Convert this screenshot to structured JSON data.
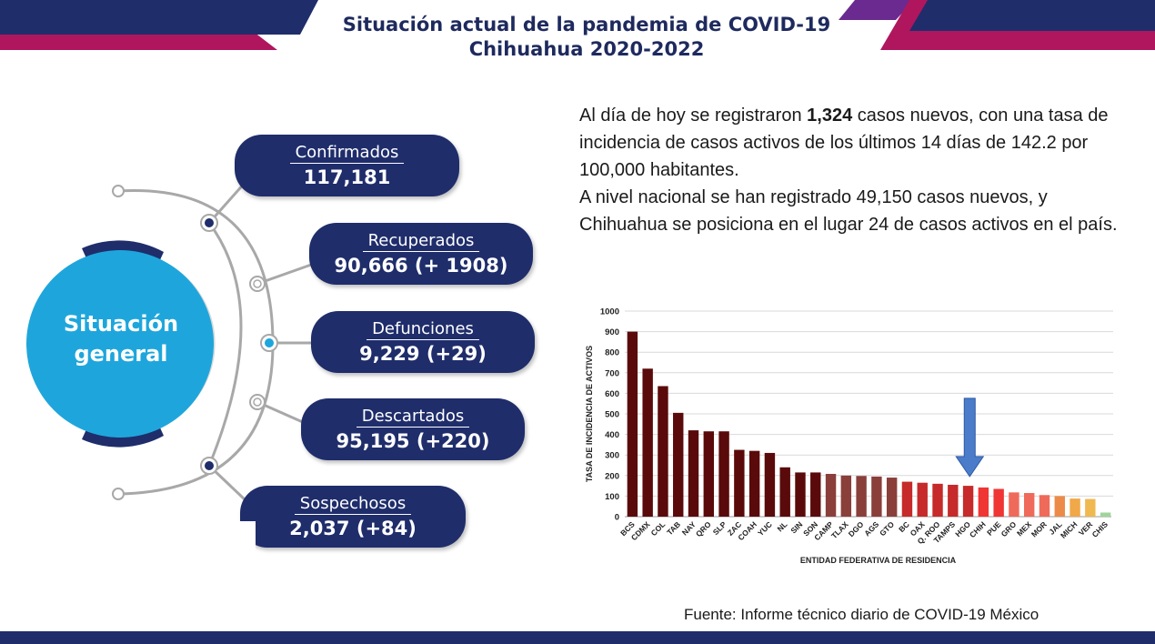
{
  "header": {
    "title_line1": "Situación actual de la pandemia de COVID-19",
    "title_line2": "Chihuahua 2020-2022",
    "colors": {
      "navy": "#1f2d6b",
      "magenta": "#b0165e",
      "purple": "#6b2a8f"
    }
  },
  "hub": {
    "label_line1": "Situación",
    "label_line2": "general",
    "color": "#1ea6dc"
  },
  "stats": [
    {
      "label": "Confirmados",
      "value": "117,181"
    },
    {
      "label": "Recuperados",
      "value": "90,666 (+ 1908)"
    },
    {
      "label": "Defunciones",
      "value": "9,229 (+29)"
    },
    {
      "label": "Descartados",
      "value": "95,195 (+220)"
    },
    {
      "label": "Sospechosos",
      "value": "2,037 (+84)"
    }
  ],
  "summary": {
    "p1_before": "Al día de hoy se registraron ",
    "p1_bold": "1,324",
    "p1_after": " casos nuevos, con una tasa de incidencia de casos activos de los últimos 14 días de 142.2 por 100,000 habitantes.",
    "p2": "A nivel nacional se han registrado 49,150 casos nuevos, y Chihuahua se posiciona en el lugar 24 de casos activos en el país."
  },
  "chart_data": {
    "type": "bar",
    "title": "",
    "xlabel": "ENTIDAD FEDERATIVA DE RESIDENCIA",
    "ylabel": "TASA DE INCIDENCIA DE ACTIVOS",
    "ylim": [
      0,
      1000
    ],
    "yticks": [
      0,
      100,
      200,
      300,
      400,
      500,
      600,
      700,
      800,
      900,
      1000
    ],
    "grid": true,
    "categories": [
      "BCS",
      "CDMX",
      "COL",
      "TAB",
      "NAY",
      "QRO",
      "SLP",
      "ZAC",
      "COAH",
      "YUC",
      "NL",
      "SIN",
      "SON",
      "CAMP",
      "TLAX",
      "DGO",
      "AGS",
      "GTO",
      "BC",
      "OAX",
      "Q. ROO",
      "TAMPS",
      "HGO",
      "CHIH",
      "PUE",
      "GRO",
      "MEX",
      "MOR",
      "JAL",
      "MICH",
      "VER",
      "CHIS"
    ],
    "values": [
      900,
      720,
      635,
      505,
      420,
      415,
      415,
      325,
      320,
      310,
      240,
      215,
      215,
      208,
      200,
      198,
      195,
      190,
      170,
      165,
      160,
      155,
      150,
      142,
      135,
      118,
      115,
      105,
      100,
      88,
      86,
      20
    ],
    "colors": [
      "#5a0a0a",
      "#5a0a0a",
      "#5a0a0a",
      "#5a0a0a",
      "#5a0a0a",
      "#5a0a0a",
      "#5a0a0a",
      "#5a0a0a",
      "#5a0a0a",
      "#5a0a0a",
      "#5a0a0a",
      "#5a0a0a",
      "#5a0a0a",
      "#8a3f3a",
      "#8a3f3a",
      "#8a3f3a",
      "#8a3f3a",
      "#8a3f3a",
      "#c62a2a",
      "#c62a2a",
      "#c62a2a",
      "#c62a2a",
      "#c62a2a",
      "#f03535",
      "#f03535",
      "#ef6a5a",
      "#ef6a5a",
      "#ef6a5a",
      "#ec8a4a",
      "#f0a848",
      "#f0b850",
      "#9fd49a"
    ],
    "highlight": "CHIH",
    "arrow_color": "#4a7cc9"
  },
  "source": "Fuente: Informe técnico diario de COVID-19 México"
}
